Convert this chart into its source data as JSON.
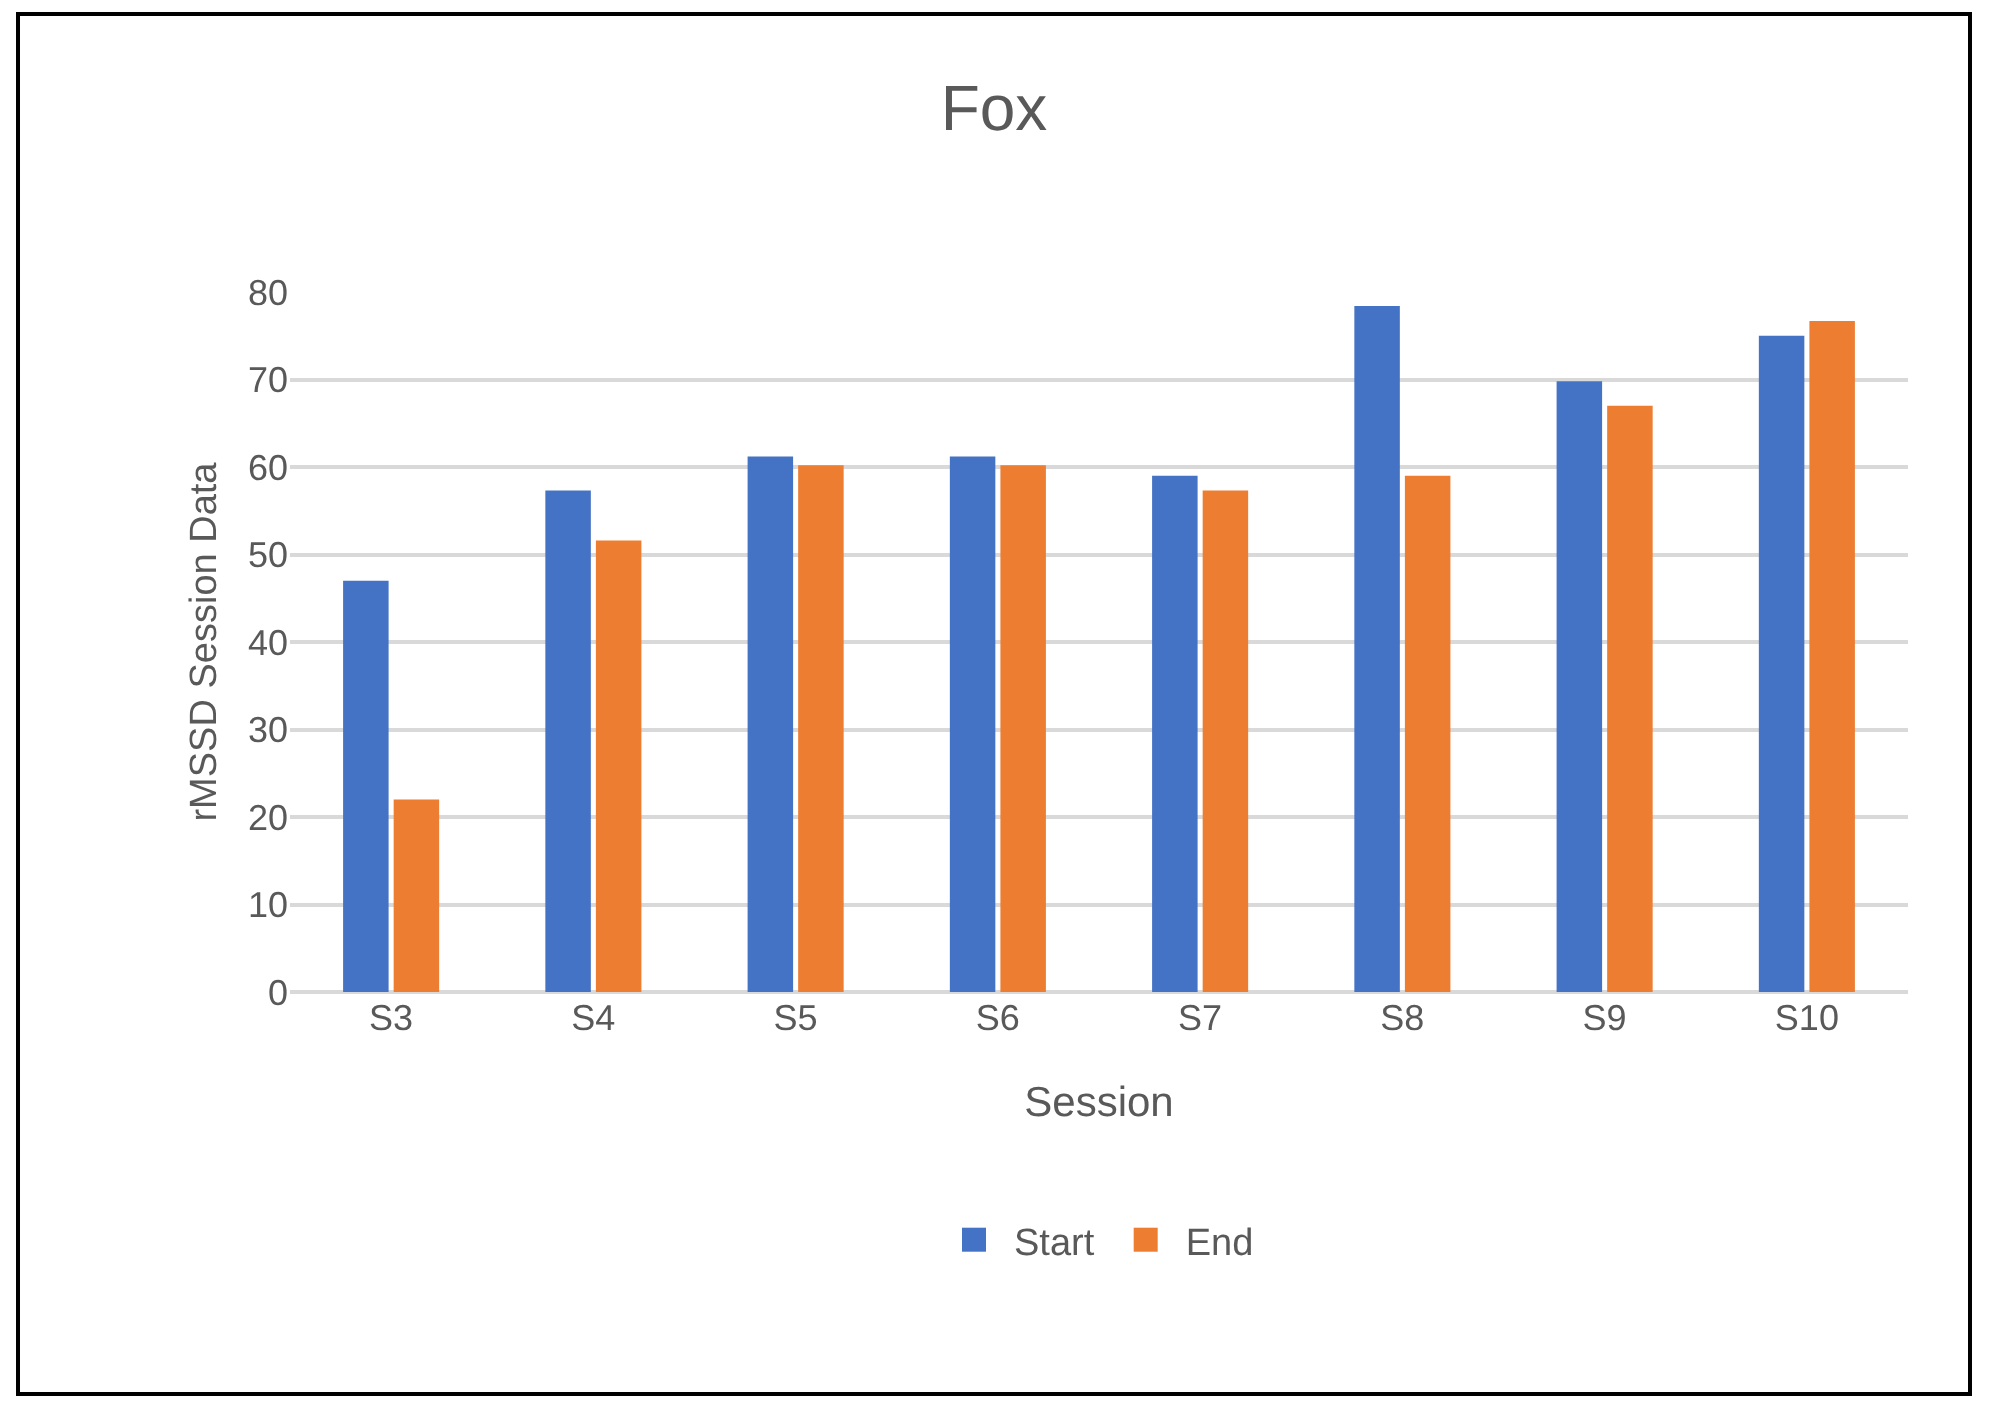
{
  "chart_data": {
    "type": "bar",
    "title": "Fox",
    "xlabel": "Session",
    "ylabel": "rMSSD Session Data",
    "categories": [
      "S3",
      "S4",
      "S5",
      "S6",
      "S7",
      "S8",
      "S9",
      "S10"
    ],
    "series": [
      {
        "name": "Start",
        "color": "#4472c4",
        "values": [
          47,
          57.3,
          61.2,
          61.2,
          59,
          78.4,
          69.8,
          75
        ]
      },
      {
        "name": "End",
        "color": "#ed7d31",
        "values": [
          22,
          51.6,
          60.2,
          60.2,
          57.3,
          59,
          67,
          76.7
        ]
      }
    ],
    "ylim": [
      0,
      80
    ],
    "yticks": [
      0,
      10,
      20,
      30,
      40,
      50,
      60,
      70,
      80
    ],
    "grid": "y",
    "legend": "bottom"
  }
}
